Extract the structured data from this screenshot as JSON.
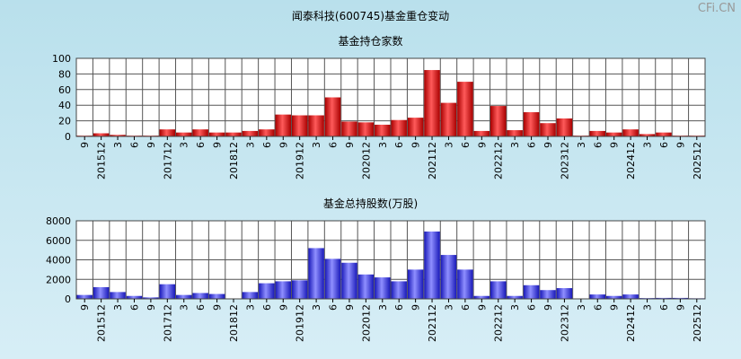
{
  "title": "闻泰科技(600745)基金重仓变动",
  "watermark": "CFi.CN",
  "tick_labels": [
    "9",
    "201512",
    "3",
    "6",
    "9",
    "201712",
    "3",
    "6",
    "9",
    "201812",
    "3",
    "6",
    "9",
    "201912",
    "3",
    "6",
    "9",
    "202012",
    "3",
    "6",
    "9",
    "202112",
    "3",
    "6",
    "9",
    "202212",
    "3",
    "6",
    "9",
    "202312",
    "3",
    "6",
    "9",
    "202412",
    "3",
    "6",
    "9",
    "202512"
  ],
  "chart_data": [
    {
      "type": "bar",
      "title": "基金持仓家数",
      "ylim": [
        0,
        100
      ],
      "yticks": [
        0,
        20,
        40,
        60,
        80,
        100
      ],
      "color": "#dd2222",
      "values": [
        1,
        4,
        2,
        1,
        1,
        9,
        5,
        9,
        5,
        5,
        7,
        9,
        28,
        27,
        27,
        50,
        19,
        18,
        15,
        21,
        24,
        85,
        43,
        70,
        7,
        39,
        8,
        31,
        17,
        23,
        1,
        7,
        5,
        9,
        3,
        5,
        1,
        1
      ]
    },
    {
      "type": "bar",
      "title": "基金总持股数(万股)",
      "ylim": [
        0,
        8000
      ],
      "yticks": [
        0,
        2000,
        4000,
        6000,
        8000
      ],
      "color": "#2222dd",
      "values": [
        400,
        1200,
        700,
        300,
        150,
        1500,
        400,
        600,
        500,
        0,
        700,
        1600,
        1800,
        1900,
        5200,
        4100,
        3700,
        2500,
        2200,
        1800,
        3000,
        6900,
        4500,
        3000,
        300,
        1800,
        300,
        1400,
        900,
        1100,
        0,
        450,
        300,
        450,
        80,
        100,
        100,
        60
      ]
    }
  ]
}
